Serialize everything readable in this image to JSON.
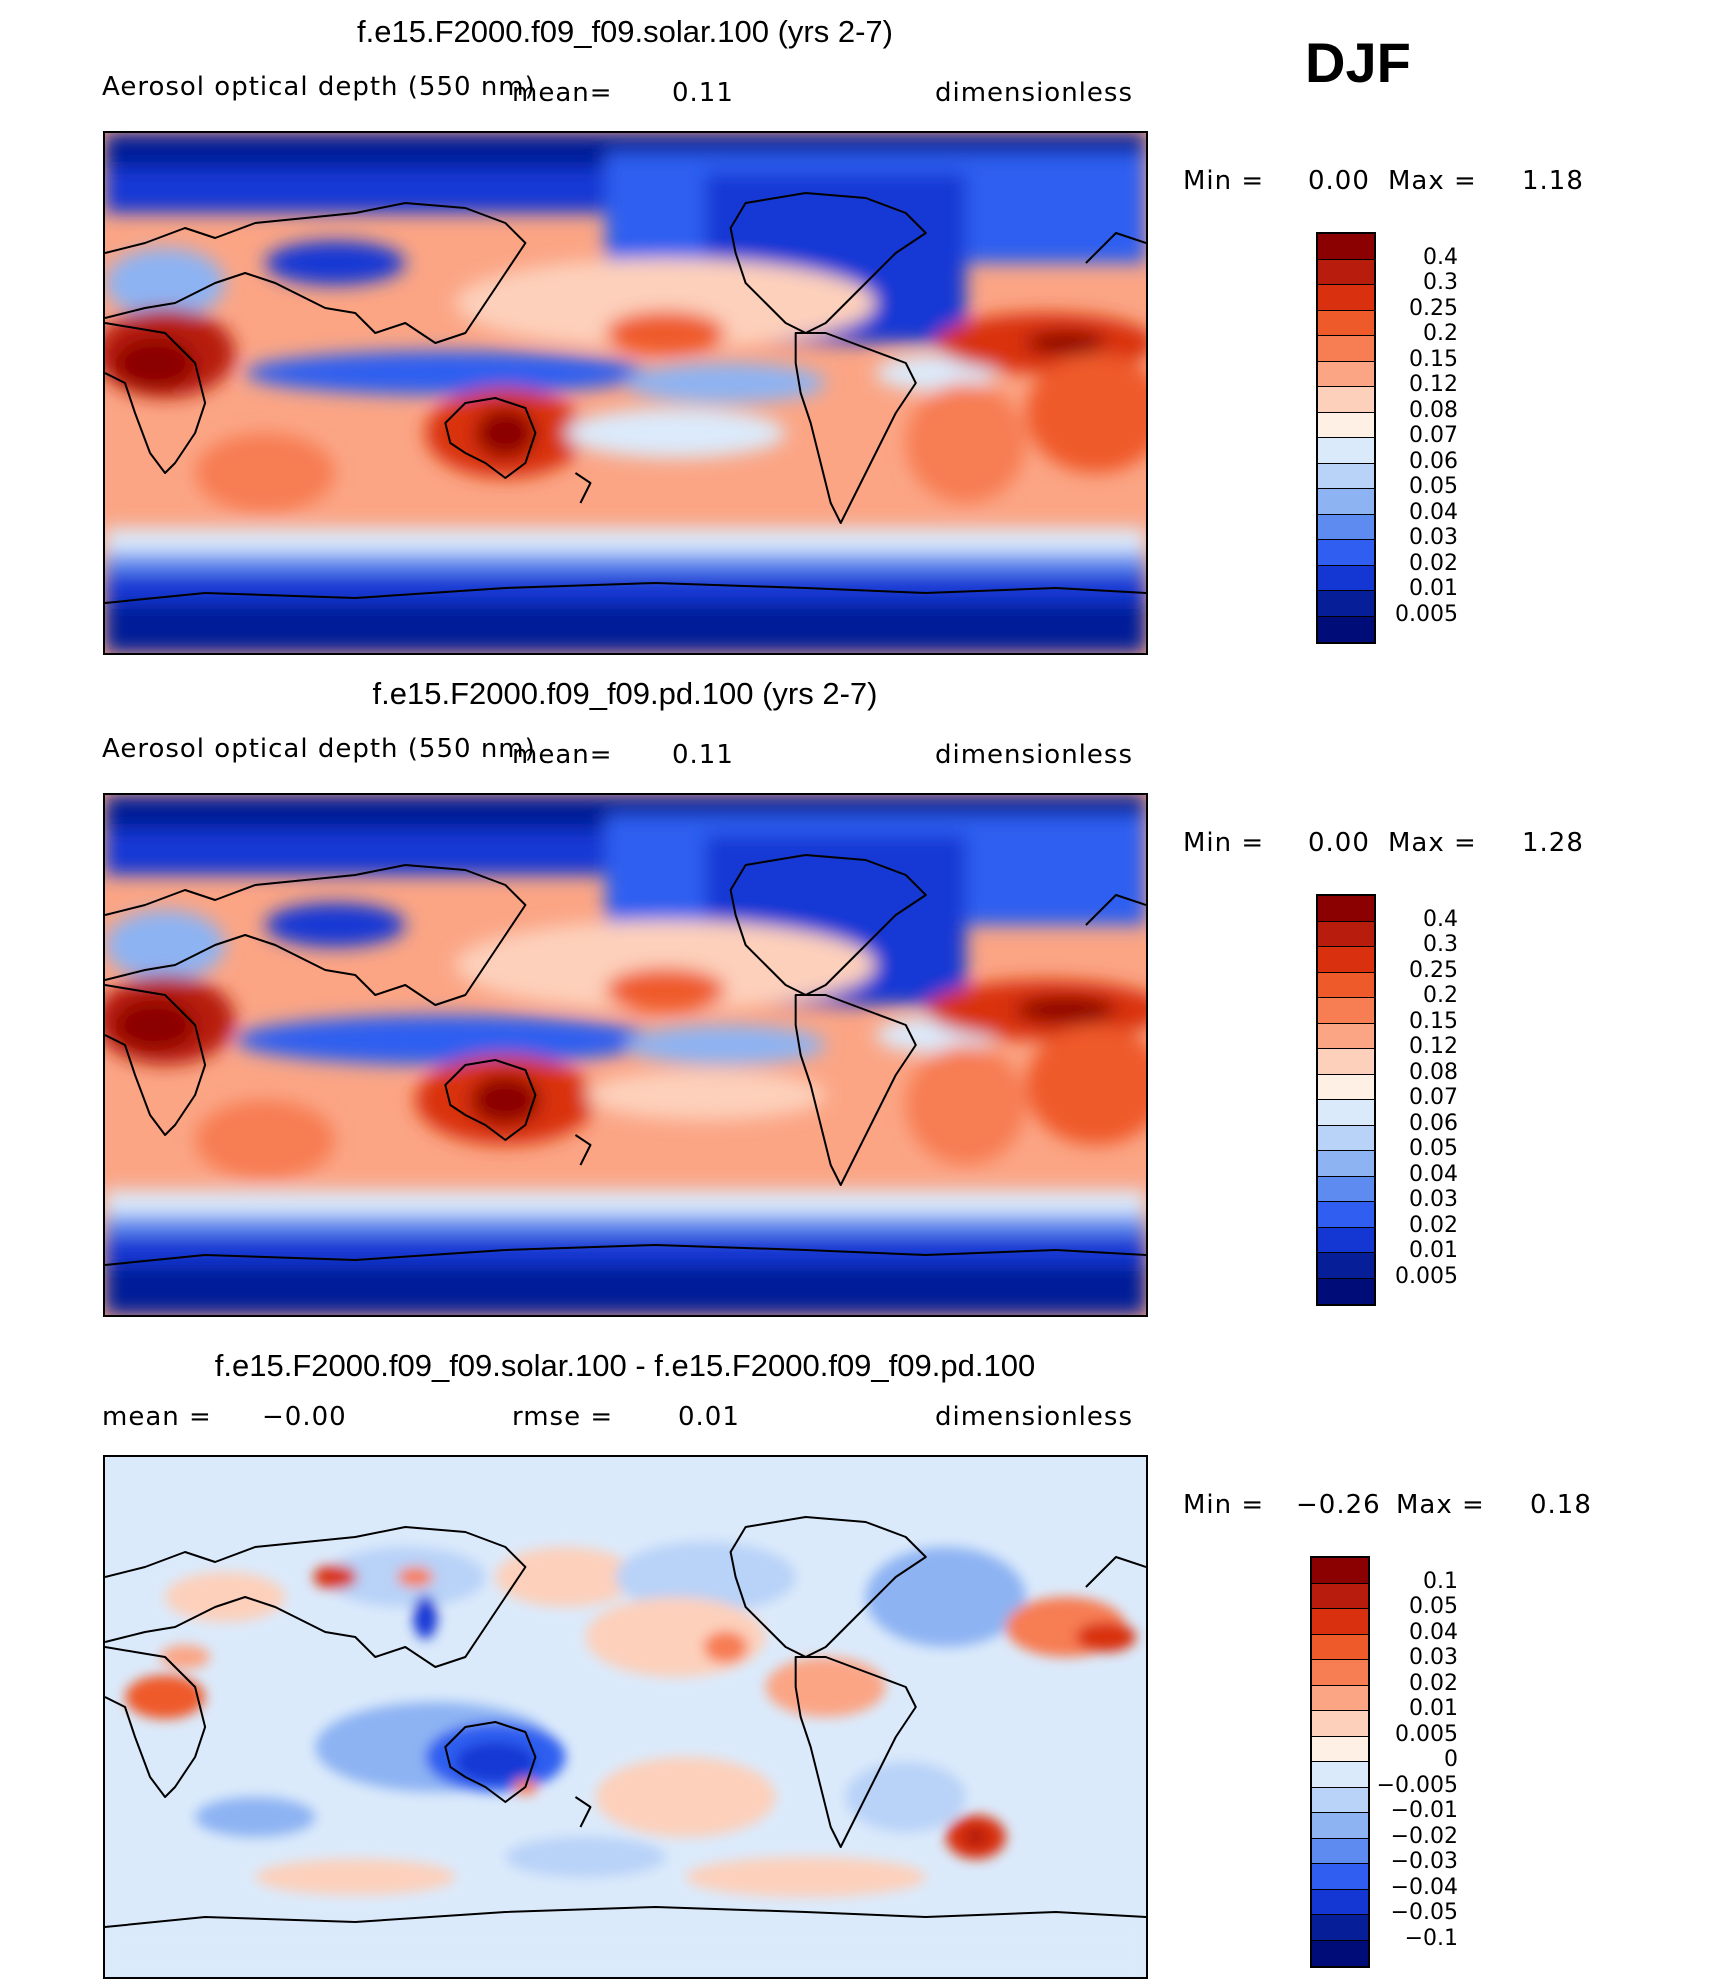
{
  "season": "DJF",
  "panels": [
    {
      "title": "f.e15.F2000.f09_f09.solar.100 (yrs 2-7)",
      "variable": "Aerosol optical depth (550 nm)",
      "mean_label": "mean=",
      "mean_value": "0.11",
      "rmse_label": "",
      "rmse_value": "",
      "units": "dimensionless",
      "min_label": "Min =",
      "min_value": "0.00",
      "max_label": "Max =",
      "max_value": "1.18",
      "levels": [
        "0.4",
        "0.3",
        "0.25",
        "0.2",
        "0.15",
        "0.12",
        "0.08",
        "0.07",
        "0.06",
        "0.05",
        "0.04",
        "0.03",
        "0.02",
        "0.01",
        "0.005"
      ],
      "colors": [
        "#8b0000",
        "#b71c0c",
        "#d9300f",
        "#ef5a2a",
        "#f77d52",
        "#fba585",
        "#fdd0bb",
        "#fff0e6",
        "#dbeafb",
        "#b8d2f8",
        "#8db3f3",
        "#5e8bef",
        "#2f5ef0",
        "#1437d4",
        "#061e98",
        "#000c78"
      ]
    },
    {
      "title": "f.e15.F2000.f09_f09.pd.100 (yrs 2-7)",
      "variable": "Aerosol optical depth (550 nm)",
      "mean_label": "mean=",
      "mean_value": "0.11",
      "rmse_label": "",
      "rmse_value": "",
      "units": "dimensionless",
      "min_label": "Min =",
      "min_value": "0.00",
      "max_label": "Max =",
      "max_value": "1.28",
      "levels": [
        "0.4",
        "0.3",
        "0.25",
        "0.2",
        "0.15",
        "0.12",
        "0.08",
        "0.07",
        "0.06",
        "0.05",
        "0.04",
        "0.03",
        "0.02",
        "0.01",
        "0.005"
      ],
      "colors": [
        "#8b0000",
        "#b71c0c",
        "#d9300f",
        "#ef5a2a",
        "#f77d52",
        "#fba585",
        "#fdd0bb",
        "#fff0e6",
        "#dbeafb",
        "#b8d2f8",
        "#8db3f3",
        "#5e8bef",
        "#2f5ef0",
        "#1437d4",
        "#061e98",
        "#000c78"
      ]
    },
    {
      "title": "f.e15.F2000.f09_f09.solar.100 - f.e15.F2000.f09_f09.pd.100",
      "variable": "",
      "mean_label": "mean =",
      "mean_value": "−0.00",
      "rmse_label": "rmse =",
      "rmse_value": "0.01",
      "units": "dimensionless",
      "min_label": "Min =",
      "min_value": "−0.26",
      "max_label": "Max =",
      "max_value": "0.18",
      "levels": [
        "0.1",
        "0.05",
        "0.04",
        "0.03",
        "0.02",
        "0.01",
        "0.005",
        "0",
        "−0.005",
        "−0.01",
        "−0.02",
        "−0.03",
        "−0.04",
        "−0.05",
        "−0.1"
      ],
      "colors": [
        "#8b0000",
        "#b71c0c",
        "#d9300f",
        "#ef5a2a",
        "#f77d52",
        "#fba585",
        "#fdd0bb",
        "#fff0e6",
        "#dbeafb",
        "#b8d2f8",
        "#8db3f3",
        "#5e8bef",
        "#2f5ef0",
        "#1437d4",
        "#061e98",
        "#000c78"
      ]
    }
  ]
}
